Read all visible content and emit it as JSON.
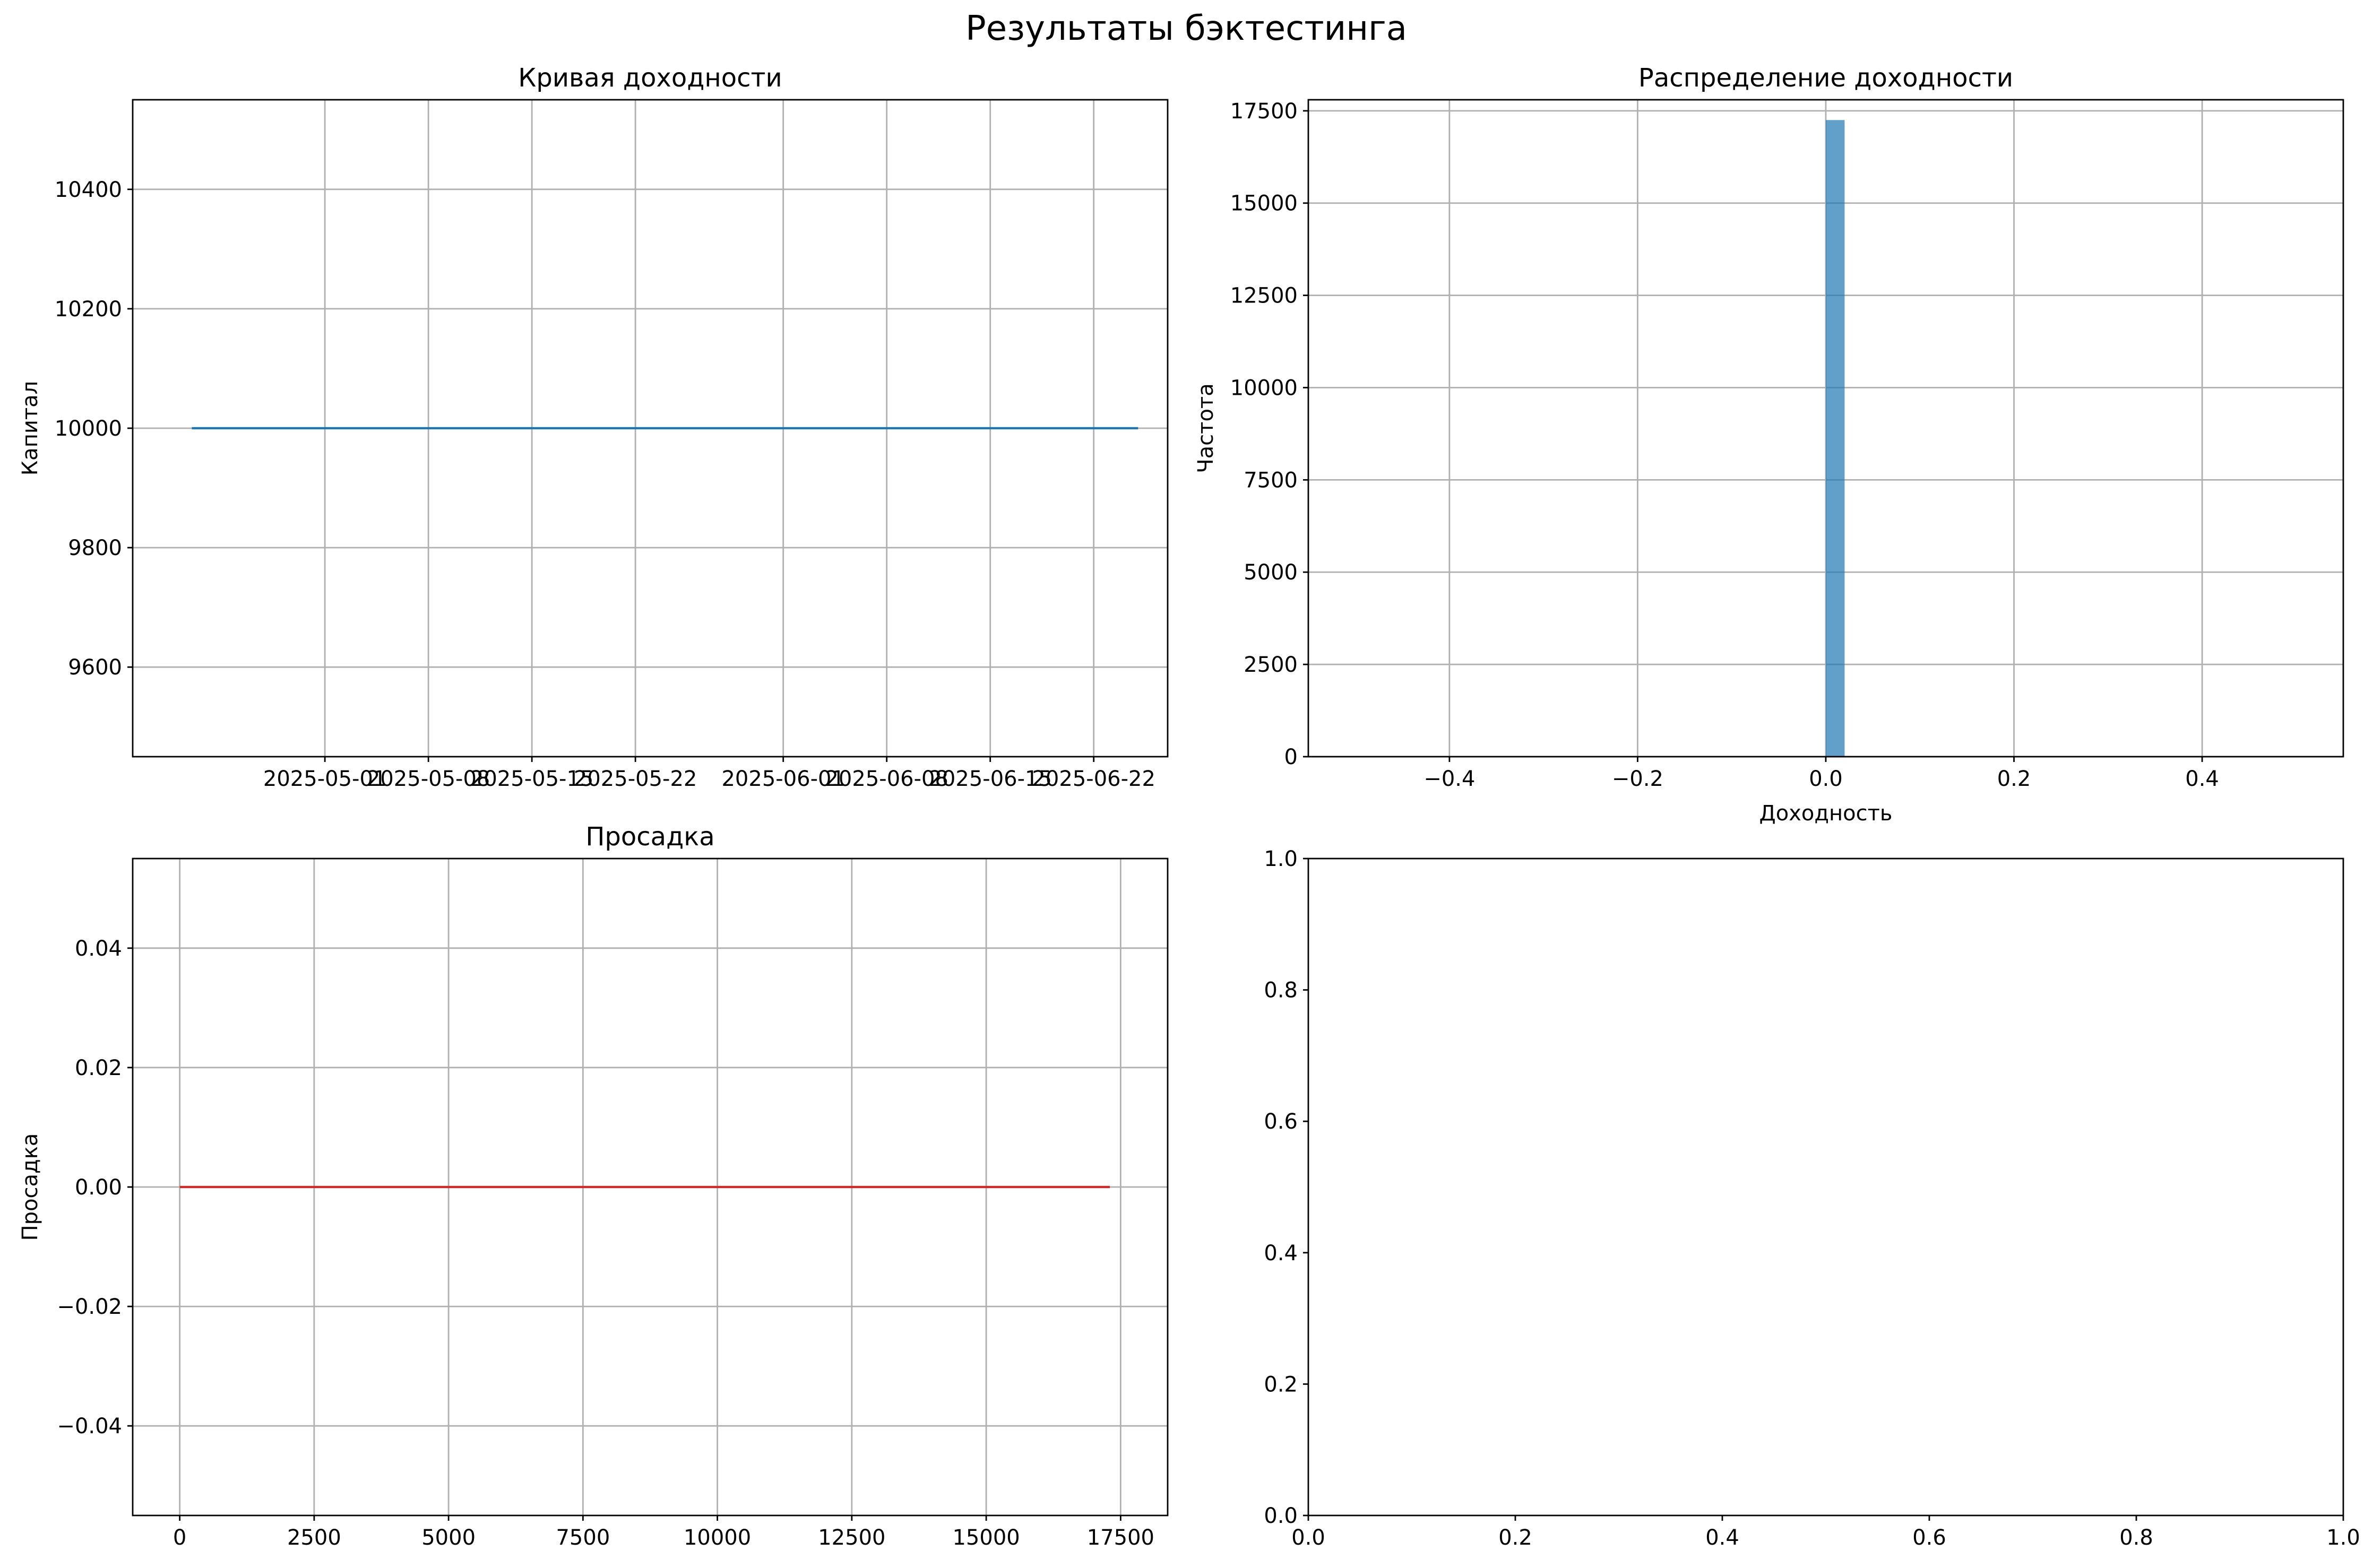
{
  "suptitle": "Результаты бэктестинга",
  "chart_data": [
    {
      "type": "line",
      "title": "Кривая доходности",
      "xlabel": "",
      "ylabel": "Капитал",
      "x_ticks": [
        "2025-05-01",
        "2025-05-08",
        "2025-05-15",
        "2025-05-22",
        "2025-06-01",
        "2025-06-08",
        "2025-06-15",
        "2025-06-22"
      ],
      "xlim": [
        "2025-04-18",
        "2025-06-27"
      ],
      "ylim": [
        9450,
        10550
      ],
      "y_ticks": [
        9600,
        9800,
        10000,
        10200,
        10400
      ],
      "series": [
        {
          "x": [
            "2025-04-22",
            "2025-06-25"
          ],
          "values": [
            10000,
            10000
          ]
        }
      ],
      "grid": true,
      "color": "#1f77b4"
    },
    {
      "type": "bar",
      "title": "Распределение доходности",
      "xlabel": "Доходность",
      "ylabel": "Частота",
      "xlim": [
        -0.55,
        0.55
      ],
      "ylim": [
        0,
        17800
      ],
      "x_ticks": [
        "−0.4",
        "−0.2",
        "0.0",
        "0.2",
        "0.4"
      ],
      "y_ticks": [
        "0",
        "2500",
        "5000",
        "7500",
        "10000",
        "12500",
        "15000",
        "17500"
      ],
      "bins": [
        {
          "from": 0.0,
          "to": 0.02,
          "count": 17250
        }
      ],
      "grid": true,
      "color": "#1f77b4"
    },
    {
      "type": "line",
      "title": "Просадка",
      "xlabel": "",
      "ylabel": "Просадка",
      "xlim": [
        -875,
        18375
      ],
      "ylim": [
        -0.055,
        0.055
      ],
      "x_ticks": [
        "0",
        "2500",
        "5000",
        "7500",
        "10000",
        "12500",
        "15000",
        "17500"
      ],
      "y_ticks": [
        "−0.04",
        "−0.02",
        "0.00",
        "0.02",
        "0.04"
      ],
      "series": [
        {
          "x": [
            0,
            17300
          ],
          "values": [
            0,
            0
          ]
        }
      ],
      "grid": true,
      "color": "#d62728"
    },
    {
      "type": "line",
      "title": "",
      "xlabel": "",
      "ylabel": "",
      "xlim": [
        0,
        1
      ],
      "ylim": [
        0,
        1
      ],
      "x_ticks": [
        "0.0",
        "0.2",
        "0.4",
        "0.6",
        "0.8",
        "1.0"
      ],
      "y_ticks": [
        "0.0",
        "0.2",
        "0.4",
        "0.6",
        "0.8",
        "1.0"
      ],
      "series": [],
      "grid": false
    }
  ]
}
